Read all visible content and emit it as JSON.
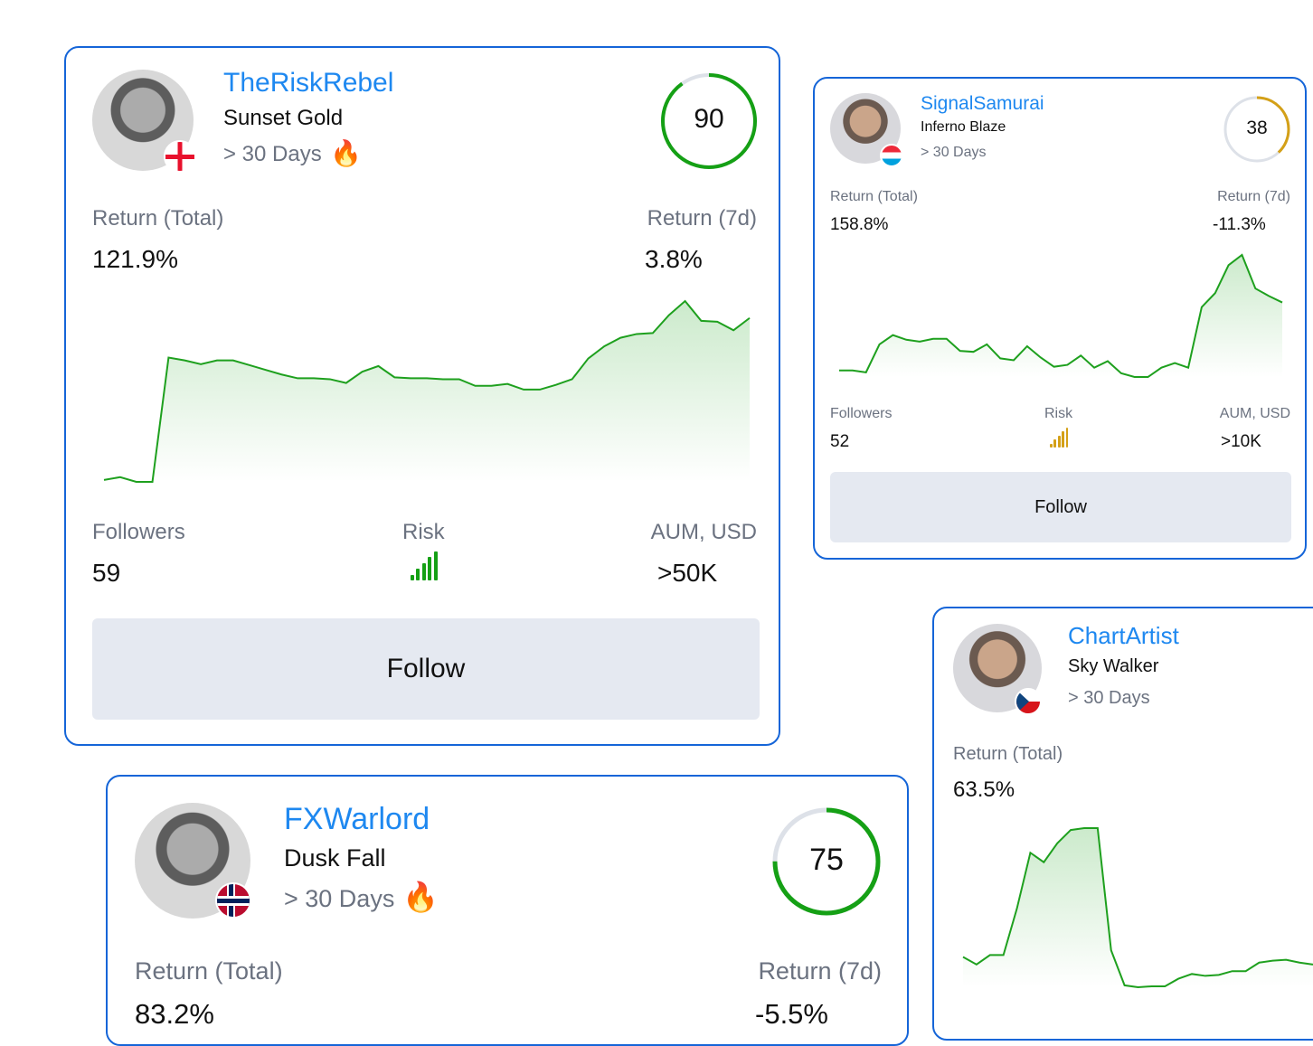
{
  "cards": [
    {
      "nickname": "TheRiskRebel",
      "strategy": "Sunset Gold",
      "age": "> 30 Days",
      "hot": true,
      "score": 90,
      "score_color": "#15a015",
      "return_total_label": "Return (Total)",
      "return_total": "121.9%",
      "return_7d_label": "Return (7d)",
      "return_7d": "3.8%",
      "followers_label": "Followers",
      "followers": "59",
      "risk_label": "Risk",
      "risk_level": 5,
      "risk_color": "#15a015",
      "aum_label": "AUM, USD",
      "aum": ">50K",
      "follow_label": "Follow",
      "flag": "georgia",
      "spark": [
        13,
        16,
        11,
        11,
        143,
        140,
        136,
        140,
        140,
        135,
        130,
        125,
        121,
        121,
        120,
        116,
        128,
        134,
        122,
        121,
        121,
        120,
        120,
        113,
        113,
        115,
        109,
        109,
        114,
        120,
        142,
        155,
        164,
        168,
        169,
        188,
        203,
        182,
        181,
        172,
        185
      ]
    },
    {
      "nickname": "SignalSamurai",
      "strategy": "Inferno Blaze",
      "age": "> 30 Days",
      "score": 38,
      "score_color": "#d4a017",
      "return_total_label": "Return (Total)",
      "return_total": "158.8%",
      "return_7d_label": "Return (7d)",
      "return_7d": "-11.3%",
      "followers_label": "Followers",
      "followers": "52",
      "risk_label": "Risk",
      "risk_level": 5,
      "risk_color": "#d4a017",
      "aum_label": "AUM, USD",
      "aum": ">10K",
      "follow_label": "Follow",
      "flag": "luxembourg",
      "spark": [
        32,
        32,
        30,
        60,
        70,
        65,
        63,
        66,
        66,
        53,
        52,
        60,
        45,
        43,
        58,
        46,
        36,
        38,
        48,
        35,
        42,
        29,
        25,
        25,
        35,
        40,
        35,
        100,
        115,
        145,
        156,
        120,
        112,
        105
      ]
    },
    {
      "nickname": "ChartArtist",
      "strategy": "Sky Walker",
      "age": "> 30 Days",
      "return_total_label": "Return (Total)",
      "return_total": "63.5%",
      "flag": "czechia",
      "spark": [
        38,
        30,
        40,
        40,
        89,
        148,
        138,
        158,
        172,
        174,
        174,
        45,
        8,
        6,
        7,
        7,
        15,
        20,
        18,
        19,
        23,
        23,
        32,
        34,
        35,
        32,
        30
      ]
    },
    {
      "nickname": "FXWarlord",
      "strategy": "Dusk Fall",
      "age": "> 30 Days",
      "hot": true,
      "score": 75,
      "score_color": "#15a015",
      "return_total_label": "Return (Total)",
      "return_total": "83.2%",
      "return_7d_label": "Return (7d)",
      "return_7d": "-5.5%",
      "flag": "norway"
    }
  ]
}
